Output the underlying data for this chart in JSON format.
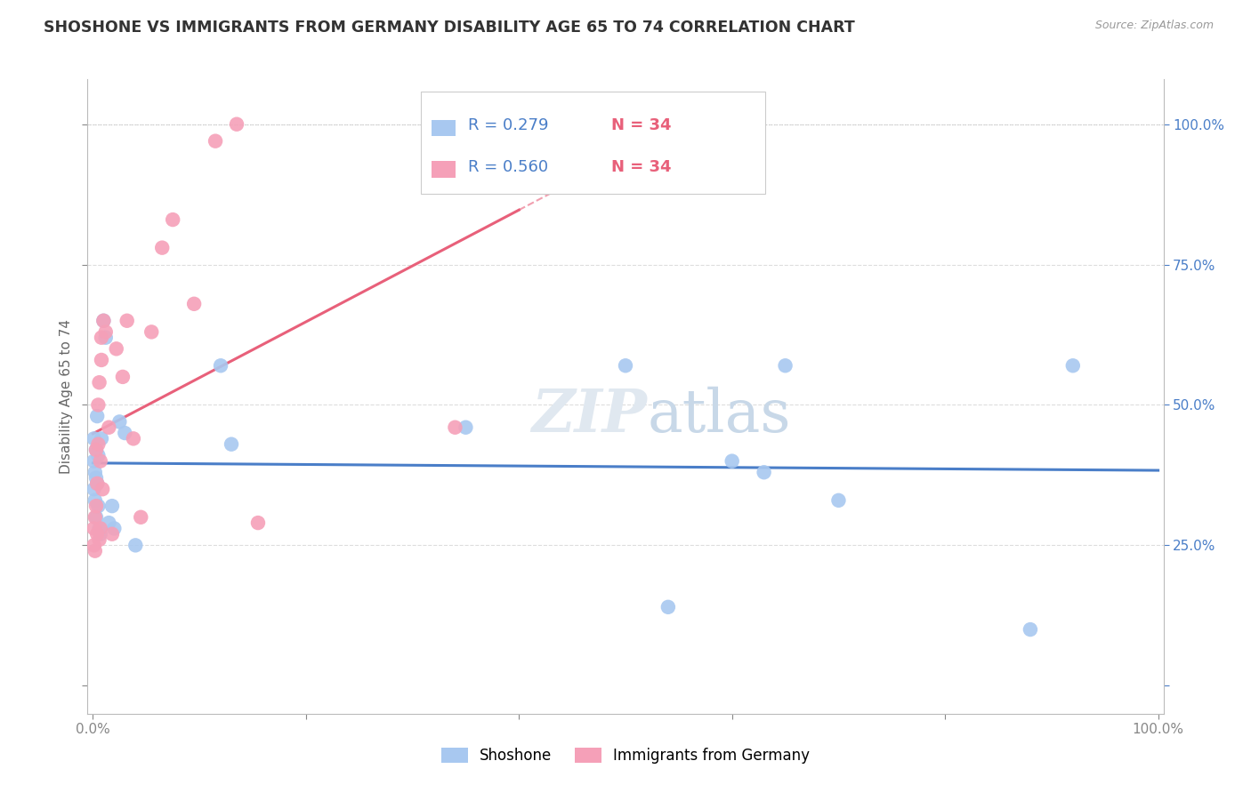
{
  "title": "SHOSHONE VS IMMIGRANTS FROM GERMANY DISABILITY AGE 65 TO 74 CORRELATION CHART",
  "source": "Source: ZipAtlas.com",
  "ylabel": "Disability Age 65 to 74",
  "legend_label1": "Shoshone",
  "legend_label2": "Immigrants from Germany",
  "r1": "0.279",
  "n1": "34",
  "r2": "0.560",
  "n2": "34",
  "blue_color": "#A8C8F0",
  "pink_color": "#F5A0B8",
  "blue_line_color": "#4A7EC8",
  "pink_line_color": "#E8607A",
  "watermark_color": "#E0E8F0",
  "shoshone_x": [
    0.001,
    0.001,
    0.001,
    0.002,
    0.002,
    0.003,
    0.003,
    0.003,
    0.004,
    0.004,
    0.005,
    0.005,
    0.006,
    0.007,
    0.008,
    0.01,
    0.012,
    0.015,
    0.018,
    0.02,
    0.025,
    0.03,
    0.04,
    0.12,
    0.13,
    0.35,
    0.5,
    0.54,
    0.6,
    0.63,
    0.65,
    0.7,
    0.88,
    0.92
  ],
  "shoshone_y": [
    0.44,
    0.4,
    0.35,
    0.38,
    0.33,
    0.42,
    0.37,
    0.3,
    0.36,
    0.48,
    0.41,
    0.32,
    0.28,
    0.27,
    0.44,
    0.65,
    0.62,
    0.29,
    0.32,
    0.28,
    0.47,
    0.45,
    0.25,
    0.57,
    0.43,
    0.46,
    0.57,
    0.14,
    0.4,
    0.38,
    0.57,
    0.33,
    0.1,
    0.57
  ],
  "germany_x": [
    0.001,
    0.001,
    0.002,
    0.002,
    0.003,
    0.003,
    0.004,
    0.004,
    0.005,
    0.005,
    0.006,
    0.006,
    0.007,
    0.007,
    0.008,
    0.008,
    0.009,
    0.01,
    0.012,
    0.015,
    0.018,
    0.022,
    0.028,
    0.032,
    0.038,
    0.045,
    0.055,
    0.065,
    0.075,
    0.095,
    0.115,
    0.135,
    0.155,
    0.34
  ],
  "germany_y": [
    0.25,
    0.28,
    0.3,
    0.24,
    0.42,
    0.32,
    0.36,
    0.27,
    0.43,
    0.5,
    0.26,
    0.54,
    0.4,
    0.28,
    0.58,
    0.62,
    0.35,
    0.65,
    0.63,
    0.46,
    0.27,
    0.6,
    0.55,
    0.65,
    0.44,
    0.3,
    0.63,
    0.78,
    0.83,
    0.68,
    0.97,
    1.0,
    0.29,
    0.46
  ],
  "xmin": 0.0,
  "xmax": 1.0,
  "ymin": 0.0,
  "ymax": 1.0,
  "yticks": [
    0.0,
    0.25,
    0.5,
    0.75,
    1.0
  ],
  "ytick_labels": [
    "",
    "25.0%",
    "50.0%",
    "75.0%",
    "100.0%"
  ],
  "xtick_left_label": "0.0%",
  "xtick_right_label": "100.0%"
}
